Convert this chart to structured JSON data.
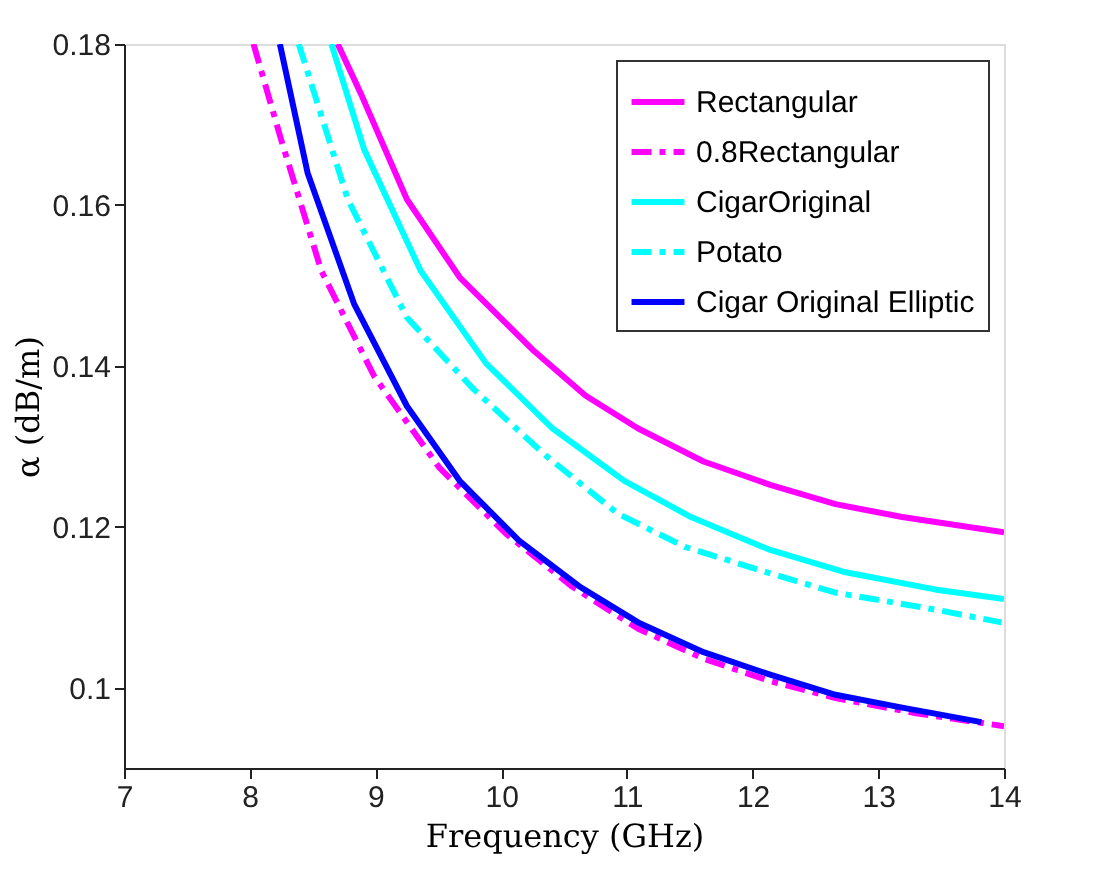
{
  "chart_data": {
    "type": "line",
    "xlabel": "Frequency (GHz)",
    "ylabel": "α (dB/m)",
    "xlim": [
      7,
      14
    ],
    "xticks": [
      7,
      8,
      9,
      10,
      11,
      12,
      13,
      14
    ],
    "ylim": [
      0.09,
      0.18
    ],
    "yticks": [
      0.1,
      0.12,
      0.14,
      0.16,
      0.18
    ],
    "grid": false,
    "legend": "top right",
    "marker": "none",
    "series": [
      {
        "name": "Rectangular",
        "color": "#ff00ff",
        "line_style": "solid",
        "x": [
          8.7,
          8.885,
          9.25,
          9.67,
          10.25,
          10.67,
          11.09,
          11.61,
          12.14,
          12.66,
          13.19,
          14.0
        ],
        "values": [
          0.18,
          0.1738,
          0.1607,
          0.151,
          0.142,
          0.1363,
          0.1322,
          0.1281,
          0.1252,
          0.1228,
          0.1212,
          0.1193
        ]
      },
      {
        "name": "0.8Rectangular",
        "color": "#ff00ff",
        "line_style": "dashdot",
        "x": [
          8.03,
          8.25,
          8.57,
          8.99,
          9.51,
          10.04,
          10.56,
          11.09,
          11.61,
          12.14,
          12.66,
          13.3,
          14.0
        ],
        "values": [
          0.18,
          0.1681,
          0.1518,
          0.1387,
          0.1273,
          0.1191,
          0.1126,
          0.1073,
          0.1036,
          0.1008,
          0.0987,
          0.0968,
          0.0952
        ]
      },
      {
        "name": "CigarOriginal",
        "color": "#00ffff",
        "line_style": "solid",
        "x": [
          8.65,
          8.91,
          9.36,
          9.88,
          10.41,
          10.98,
          11.51,
          12.14,
          12.72,
          13.45,
          14.0
        ],
        "values": [
          0.18,
          0.1669,
          0.1518,
          0.1403,
          0.1322,
          0.1257,
          0.1212,
          0.1171,
          0.1144,
          0.1122,
          0.111
        ]
      },
      {
        "name": "Potato",
        "color": "#00ffff",
        "line_style": "dashdot",
        "x": [
          8.39,
          8.78,
          9.25,
          9.78,
          10.35,
          10.93,
          11.46,
          12.14,
          12.66,
          13.45,
          13.98
        ],
        "values": [
          0.18,
          0.1607,
          0.146,
          0.1371,
          0.1289,
          0.1216,
          0.1175,
          0.1142,
          0.1118,
          0.1097,
          0.1081
        ]
      },
      {
        "name": "Cigar Original Elliptic",
        "color": "#0000ff",
        "line_style": "solid",
        "x": [
          8.24,
          8.46,
          8.83,
          9.25,
          9.67,
          10.14,
          10.62,
          11.09,
          11.61,
          12.14,
          12.66,
          13.19,
          13.82
        ],
        "values": [
          0.18,
          0.164,
          0.1477,
          0.135,
          0.1257,
          0.1183,
          0.1126,
          0.1081,
          0.1044,
          0.1016,
          0.0991,
          0.0975,
          0.0957
        ]
      }
    ]
  }
}
